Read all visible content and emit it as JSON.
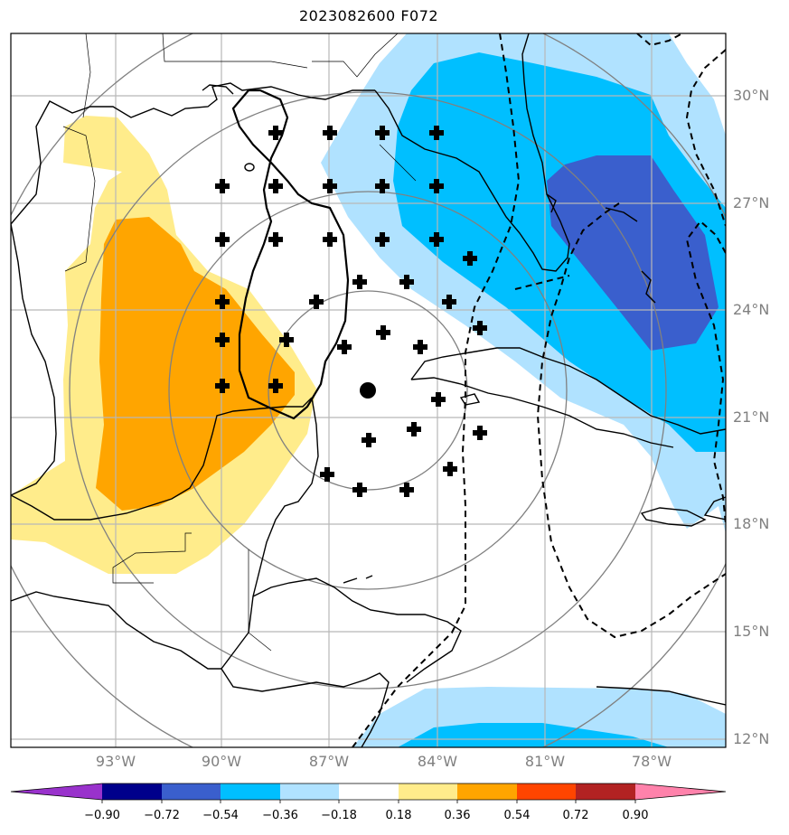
{
  "title": "2023082600 F072",
  "map": {
    "lat_labels": [
      "30°N",
      "27°N",
      "24°N",
      "21°N",
      "18°N",
      "15°N",
      "12°N"
    ],
    "lon_labels": [
      "93°W",
      "90°W",
      "87°W",
      "84°W",
      "81°W",
      "78°W"
    ],
    "center_marker": "storm-center-dot",
    "shading_colors": {
      "negative_strong": "#3a5fcd",
      "negative_mid": "#00bfff",
      "negative_weak": "#b0e2ff",
      "positive_weak": "#ffec8b",
      "positive_mid": "#ffa500"
    }
  },
  "colorbar": {
    "tick_labels": [
      "−0.90",
      "−0.72",
      "−0.54",
      "−0.36",
      "−0.18",
      "0.18",
      "0.36",
      "0.54",
      "0.72",
      "0.90"
    ],
    "colors": [
      "#9932cc",
      "#00008b",
      "#3a5fcd",
      "#00bfff",
      "#b0e2ff",
      "#ffffff",
      "#ffec8b",
      "#ffa500",
      "#ff4500",
      "#b22222",
      "#ff82ab"
    ]
  }
}
